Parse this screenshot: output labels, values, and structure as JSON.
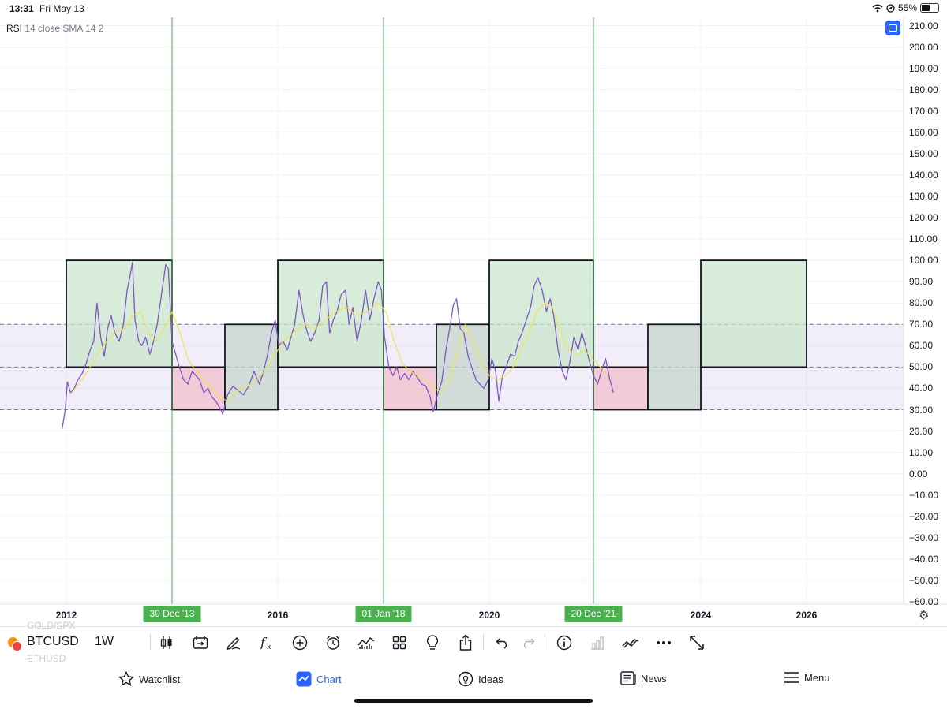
{
  "status_bar": {
    "time": "13:31",
    "date": "Fri May 13",
    "battery": "55%",
    "battery_level": 0.55
  },
  "legend": {
    "name": "RSI",
    "params": "14 close SMA 14 2"
  },
  "chart_data": {
    "type": "line",
    "ylim": [
      -60,
      210
    ],
    "y_ticks": [
      "210.00",
      "200.00",
      "190.00",
      "180.00",
      "170.00",
      "160.00",
      "150.00",
      "140.00",
      "130.00",
      "120.00",
      "110.00",
      "100.00",
      "90.00",
      "80.00",
      "70.00",
      "60.00",
      "50.00",
      "40.00",
      "30.00",
      "20.00",
      "10.00",
      "0.00",
      "−10.00",
      "−20.00",
      "−30.00",
      "−40.00",
      "−50.00",
      "−60.00"
    ],
    "x_ticks": [
      {
        "label": "2012",
        "year": 2012
      },
      {
        "label": "2016",
        "year": 2016
      },
      {
        "label": "2020",
        "year": 2020
      },
      {
        "label": "2024",
        "year": 2024
      },
      {
        "label": "2026",
        "year": 2026
      }
    ],
    "xlim_years": [
      2009.5,
      2029.4
    ],
    "rsi_band": {
      "upper": 70,
      "middle": 50,
      "lower": 30
    },
    "vertical_markers": [
      {
        "label": "30 Dec '13",
        "year": 2014.0
      },
      {
        "label": "01 Jan '18",
        "year": 2018.0
      },
      {
        "label": "20 Dec '21",
        "year": 2021.97
      }
    ],
    "boxes": [
      {
        "x0": 2012.0,
        "x1": 2014.0,
        "y0": 50,
        "y1": 100,
        "kind": "bull"
      },
      {
        "x0": 2014.0,
        "x1": 2015.0,
        "y0": 30,
        "y1": 50,
        "kind": "bear"
      },
      {
        "x0": 2015.0,
        "x1": 2016.0,
        "y0": 30,
        "y1": 70,
        "kind": "accum"
      },
      {
        "x0": 2016.0,
        "x1": 2018.0,
        "y0": 50,
        "y1": 100,
        "kind": "bull"
      },
      {
        "x0": 2018.0,
        "x1": 2019.0,
        "y0": 30,
        "y1": 50,
        "kind": "bear"
      },
      {
        "x0": 2019.0,
        "x1": 2020.0,
        "y0": 30,
        "y1": 70,
        "kind": "accum"
      },
      {
        "x0": 2020.0,
        "x1": 2021.97,
        "y0": 50,
        "y1": 100,
        "kind": "bull"
      },
      {
        "x0": 2021.97,
        "x1": 2023.0,
        "y0": 30,
        "y1": 50,
        "kind": "bear"
      },
      {
        "x0": 2023.0,
        "x1": 2024.0,
        "y0": 30,
        "y1": 70,
        "kind": "accum"
      },
      {
        "x0": 2024.0,
        "x1": 2026.0,
        "y0": 50,
        "y1": 100,
        "kind": "bull"
      }
    ],
    "series": [
      {
        "name": "RSI",
        "color": "#7e57c2",
        "points": [
          [
            2011.92,
            21
          ],
          [
            2011.98,
            30
          ],
          [
            2012.02,
            43
          ],
          [
            2012.08,
            38
          ],
          [
            2012.15,
            40
          ],
          [
            2012.22,
            44
          ],
          [
            2012.3,
            47
          ],
          [
            2012.38,
            52
          ],
          [
            2012.45,
            58
          ],
          [
            2012.52,
            62
          ],
          [
            2012.58,
            80
          ],
          [
            2012.65,
            64
          ],
          [
            2012.72,
            55
          ],
          [
            2012.78,
            68
          ],
          [
            2012.85,
            74
          ],
          [
            2012.92,
            66
          ],
          [
            2013.0,
            62
          ],
          [
            2013.08,
            70
          ],
          [
            2013.15,
            86
          ],
          [
            2013.2,
            92
          ],
          [
            2013.25,
            99
          ],
          [
            2013.3,
            72
          ],
          [
            2013.37,
            62
          ],
          [
            2013.43,
            60
          ],
          [
            2013.5,
            64
          ],
          [
            2013.58,
            56
          ],
          [
            2013.65,
            62
          ],
          [
            2013.72,
            70
          ],
          [
            2013.8,
            84
          ],
          [
            2013.88,
            98
          ],
          [
            2013.93,
            96
          ],
          [
            2014.0,
            62
          ],
          [
            2014.08,
            55
          ],
          [
            2014.15,
            49
          ],
          [
            2014.22,
            44
          ],
          [
            2014.3,
            42
          ],
          [
            2014.38,
            48
          ],
          [
            2014.45,
            46
          ],
          [
            2014.52,
            44
          ],
          [
            2014.6,
            38
          ],
          [
            2014.68,
            40
          ],
          [
            2014.75,
            36
          ],
          [
            2014.83,
            34
          ],
          [
            2014.9,
            31
          ],
          [
            2014.96,
            28
          ],
          [
            2015.05,
            37
          ],
          [
            2015.15,
            41
          ],
          [
            2015.25,
            39
          ],
          [
            2015.35,
            37
          ],
          [
            2015.45,
            41
          ],
          [
            2015.55,
            48
          ],
          [
            2015.65,
            42
          ],
          [
            2015.72,
            47
          ],
          [
            2015.8,
            55
          ],
          [
            2015.88,
            66
          ],
          [
            2015.95,
            72
          ],
          [
            2016.02,
            60
          ],
          [
            2016.1,
            62
          ],
          [
            2016.18,
            58
          ],
          [
            2016.25,
            64
          ],
          [
            2016.32,
            70
          ],
          [
            2016.4,
            86
          ],
          [
            2016.48,
            74
          ],
          [
            2016.55,
            67
          ],
          [
            2016.62,
            62
          ],
          [
            2016.7,
            66
          ],
          [
            2016.78,
            72
          ],
          [
            2016.85,
            88
          ],
          [
            2016.92,
            90
          ],
          [
            2016.98,
            66
          ],
          [
            2017.05,
            72
          ],
          [
            2017.12,
            76
          ],
          [
            2017.2,
            84
          ],
          [
            2017.28,
            86
          ],
          [
            2017.35,
            70
          ],
          [
            2017.42,
            78
          ],
          [
            2017.5,
            62
          ],
          [
            2017.58,
            72
          ],
          [
            2017.66,
            86
          ],
          [
            2017.74,
            72
          ],
          [
            2017.82,
            82
          ],
          [
            2017.9,
            90
          ],
          [
            2017.96,
            86
          ],
          [
            2018.02,
            64
          ],
          [
            2018.1,
            50
          ],
          [
            2018.18,
            46
          ],
          [
            2018.25,
            50
          ],
          [
            2018.32,
            44
          ],
          [
            2018.4,
            47
          ],
          [
            2018.48,
            44
          ],
          [
            2018.56,
            48
          ],
          [
            2018.64,
            45
          ],
          [
            2018.72,
            42
          ],
          [
            2018.8,
            41
          ],
          [
            2018.88,
            36
          ],
          [
            2018.94,
            29
          ],
          [
            2019.02,
            37
          ],
          [
            2019.1,
            43
          ],
          [
            2019.18,
            58
          ],
          [
            2019.25,
            68
          ],
          [
            2019.32,
            79
          ],
          [
            2019.38,
            82
          ],
          [
            2019.45,
            68
          ],
          [
            2019.52,
            66
          ],
          [
            2019.6,
            55
          ],
          [
            2019.68,
            49
          ],
          [
            2019.75,
            44
          ],
          [
            2019.82,
            42
          ],
          [
            2019.9,
            40
          ],
          [
            2019.98,
            44
          ],
          [
            2020.05,
            54
          ],
          [
            2020.12,
            48
          ],
          [
            2020.18,
            34
          ],
          [
            2020.25,
            46
          ],
          [
            2020.32,
            50
          ],
          [
            2020.4,
            56
          ],
          [
            2020.48,
            55
          ],
          [
            2020.55,
            62
          ],
          [
            2020.62,
            66
          ],
          [
            2020.7,
            72
          ],
          [
            2020.78,
            78
          ],
          [
            2020.85,
            88
          ],
          [
            2020.92,
            92
          ],
          [
            2021.0,
            86
          ],
          [
            2021.08,
            76
          ],
          [
            2021.15,
            82
          ],
          [
            2021.22,
            74
          ],
          [
            2021.3,
            58
          ],
          [
            2021.38,
            48
          ],
          [
            2021.45,
            44
          ],
          [
            2021.52,
            52
          ],
          [
            2021.6,
            64
          ],
          [
            2021.68,
            58
          ],
          [
            2021.75,
            66
          ],
          [
            2021.82,
            60
          ],
          [
            2021.9,
            52
          ],
          [
            2021.97,
            46
          ],
          [
            2022.05,
            42
          ],
          [
            2022.12,
            48
          ],
          [
            2022.2,
            54
          ],
          [
            2022.28,
            44
          ],
          [
            2022.35,
            38
          ]
        ]
      },
      {
        "name": "RSI-based MA",
        "color": "#f2e24b",
        "points": [
          [
            2012.1,
            38
          ],
          [
            2012.3,
            44
          ],
          [
            2012.5,
            52
          ],
          [
            2012.7,
            60
          ],
          [
            2012.9,
            66
          ],
          [
            2013.1,
            68
          ],
          [
            2013.25,
            74
          ],
          [
            2013.4,
            76
          ],
          [
            2013.55,
            66
          ],
          [
            2013.7,
            62
          ],
          [
            2013.85,
            68
          ],
          [
            2014.0,
            76
          ],
          [
            2014.15,
            66
          ],
          [
            2014.3,
            54
          ],
          [
            2014.45,
            48
          ],
          [
            2014.6,
            44
          ],
          [
            2014.75,
            40
          ],
          [
            2014.9,
            36
          ],
          [
            2015.05,
            34
          ],
          [
            2015.2,
            38
          ],
          [
            2015.35,
            40
          ],
          [
            2015.5,
            42
          ],
          [
            2015.65,
            45
          ],
          [
            2015.8,
            50
          ],
          [
            2015.95,
            56
          ],
          [
            2016.1,
            62
          ],
          [
            2016.3,
            66
          ],
          [
            2016.5,
            70
          ],
          [
            2016.7,
            68
          ],
          [
            2016.9,
            72
          ],
          [
            2017.1,
            76
          ],
          [
            2017.3,
            78
          ],
          [
            2017.5,
            74
          ],
          [
            2017.7,
            76
          ],
          [
            2017.9,
            80
          ],
          [
            2018.05,
            76
          ],
          [
            2018.2,
            62
          ],
          [
            2018.35,
            52
          ],
          [
            2018.5,
            48
          ],
          [
            2018.65,
            46
          ],
          [
            2018.8,
            44
          ],
          [
            2018.95,
            40
          ],
          [
            2019.1,
            38
          ],
          [
            2019.25,
            44
          ],
          [
            2019.4,
            58
          ],
          [
            2019.55,
            70
          ],
          [
            2019.7,
            62
          ],
          [
            2019.85,
            52
          ],
          [
            2020.0,
            46
          ],
          [
            2020.15,
            44
          ],
          [
            2020.3,
            46
          ],
          [
            2020.45,
            50
          ],
          [
            2020.6,
            58
          ],
          [
            2020.75,
            66
          ],
          [
            2020.9,
            76
          ],
          [
            2021.05,
            80
          ],
          [
            2021.2,
            78
          ],
          [
            2021.35,
            66
          ],
          [
            2021.5,
            58
          ],
          [
            2021.65,
            56
          ],
          [
            2021.8,
            58
          ],
          [
            2021.95,
            54
          ],
          [
            2022.1,
            50
          ],
          [
            2022.25,
            46
          ]
        ]
      }
    ]
  },
  "toolbar": {
    "ghost_top": "GOLD/SPX",
    "symbol": "BTCUSD",
    "ghost_bottom": "ETHUSD",
    "interval": "1W",
    "icons": [
      "candlestick-icon",
      "compare-icon",
      "draw-icon",
      "indicators-icon",
      "add-icon",
      "alert-icon",
      "chart-type-icon",
      "layout-icon",
      "ideas-icon",
      "share-icon",
      "undo-icon",
      "redo-icon",
      "info-icon",
      "volume-icon",
      "trade-icon",
      "more-icon",
      "fullscreen-icon"
    ]
  },
  "tabs": [
    {
      "label": "Watchlist",
      "icon": "star-icon"
    },
    {
      "label": "Chart",
      "icon": "chart-icon",
      "active": true
    },
    {
      "label": "Ideas",
      "icon": "lightbulb-icon"
    },
    {
      "label": "News",
      "icon": "news-icon"
    },
    {
      "label": "Menu",
      "icon": "menu-icon"
    }
  ]
}
